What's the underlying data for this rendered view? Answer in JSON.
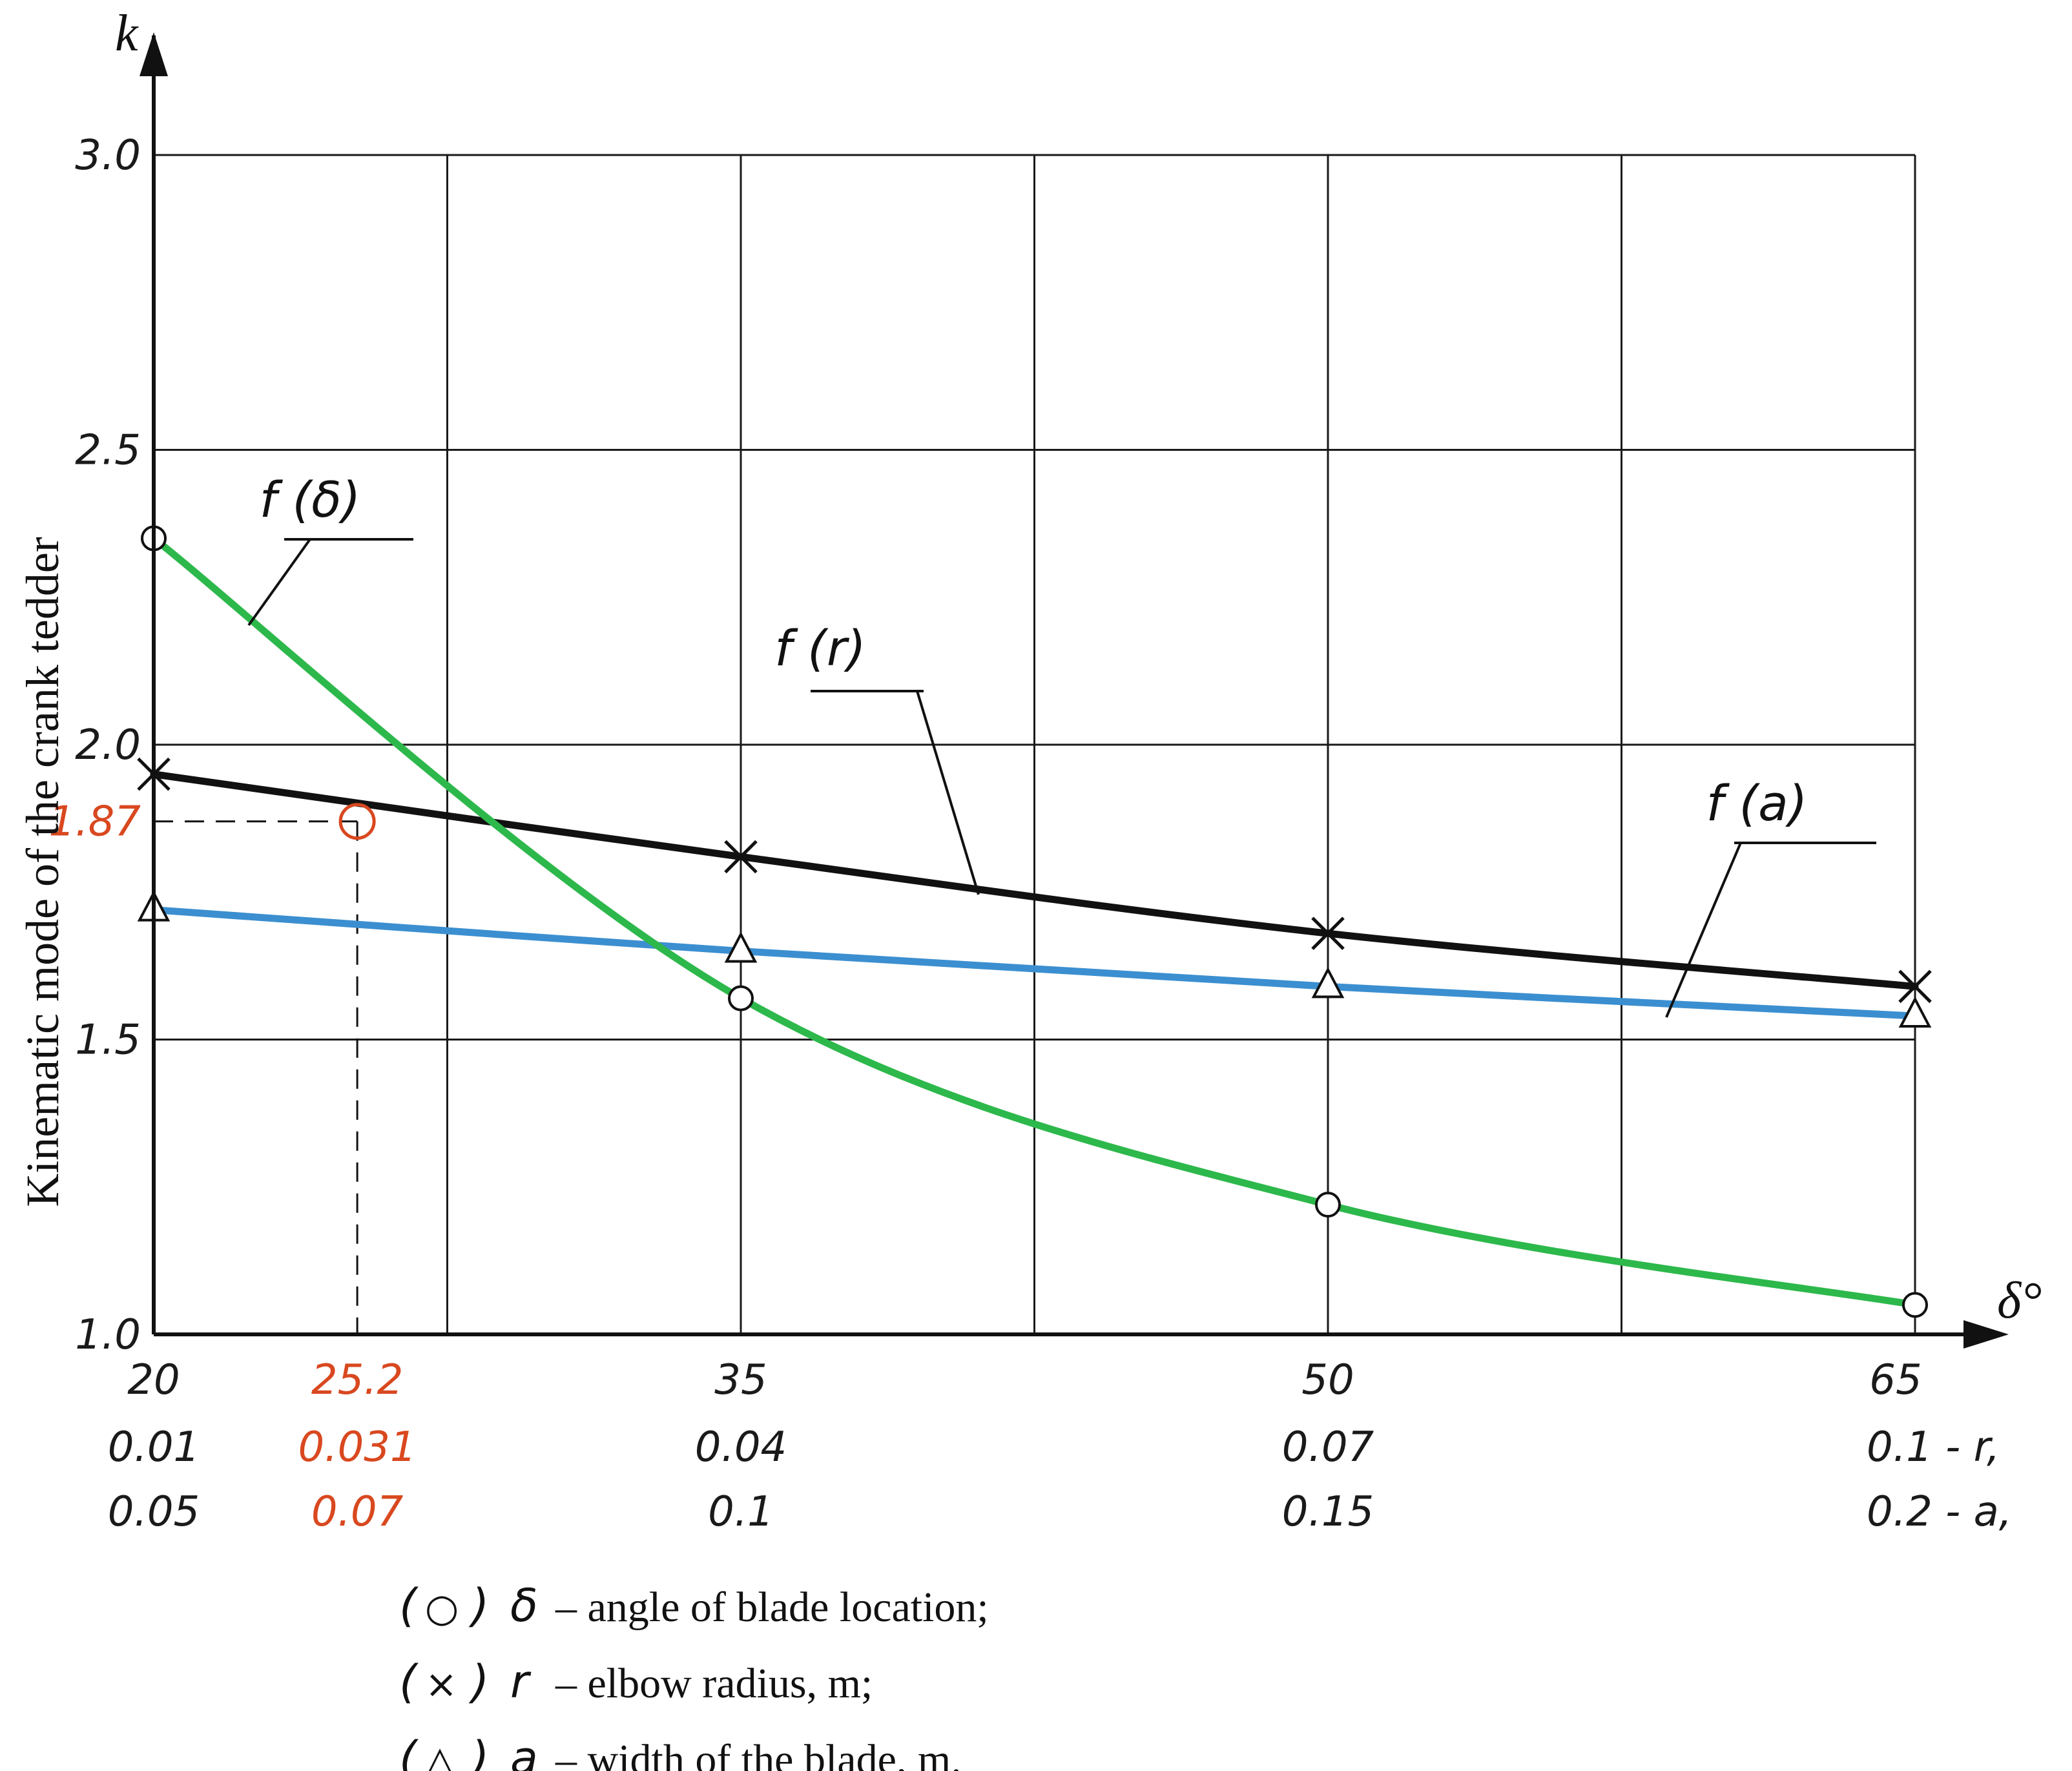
{
  "chart_data": {
    "type": "line",
    "ylabel": "Kinematic mode of the crank tedder",
    "y_axis_symbol": "k",
    "x_axis_symbol": "δ°",
    "ylim": [
      1.0,
      3.0
    ],
    "xlim": [
      20,
      65
    ],
    "y_ticks": [
      "1.0",
      "1.5",
      "2.0",
      "2.5",
      "3.0"
    ],
    "x_tick_rows": [
      {
        "name": "δ",
        "ticks": [
          "20",
          "25.2",
          "35",
          "50",
          "65"
        ]
      },
      {
        "name": "r",
        "ticks": [
          "0.01",
          "0.031",
          "0.04",
          "0.07",
          "0.1 - r,"
        ]
      },
      {
        "name": "a",
        "ticks": [
          "0.05",
          "0.07",
          "0.1",
          "0.15",
          "0.2 - a,"
        ]
      }
    ],
    "highlight": {
      "x": 25.2,
      "y": 1.87,
      "y_label": "1.87",
      "color": "#d9481f"
    },
    "series": [
      {
        "label": "f (δ)",
        "color": "#2db84b",
        "marker": "circle",
        "x": [
          20,
          35,
          50,
          65
        ],
        "y": [
          2.35,
          1.57,
          1.22,
          1.05
        ]
      },
      {
        "label": "f (r)",
        "color": "#111111",
        "marker": "x",
        "x": [
          20,
          35,
          50,
          65
        ],
        "y": [
          1.95,
          1.81,
          1.68,
          1.59
        ]
      },
      {
        "label": "f (a)",
        "color": "#3b8fd0",
        "marker": "triangle",
        "x": [
          20,
          35,
          50,
          65
        ],
        "y": [
          1.72,
          1.65,
          1.59,
          1.54
        ]
      }
    ],
    "grid": true,
    "legend": {
      "position": "bottom",
      "items": [
        {
          "marker": "○",
          "symbol": "δ",
          "text": "– angle of blade location;"
        },
        {
          "marker": "×",
          "symbol": "r",
          "text": "– elbow radius, m;"
        },
        {
          "marker": "△",
          "symbol": "a",
          "text": "– width of the blade, m."
        }
      ]
    }
  }
}
